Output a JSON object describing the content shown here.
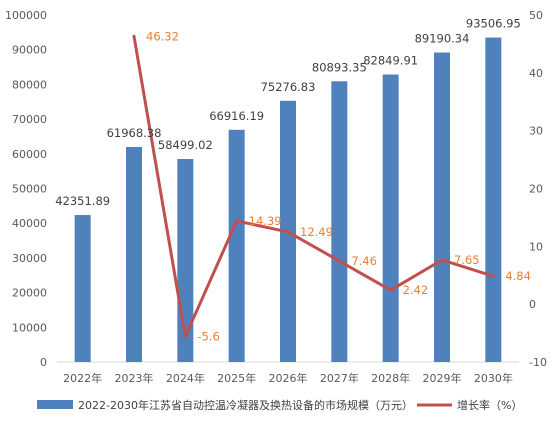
{
  "chart_data": {
    "type": "bar",
    "categories": [
      "2022年",
      "2023年",
      "2024年",
      "2025年",
      "2026年",
      "2027年",
      "2028年",
      "2029年",
      "2030年"
    ],
    "series": [
      {
        "name": "2022-2030年江苏省自动控温冷凝器及换热设备的市场规模（万元）",
        "type": "bar",
        "axis": "left",
        "values": [
          42351.89,
          61968.38,
          58499.02,
          66916.19,
          75276.83,
          80893.35,
          82849.91,
          89190.34,
          93506.95
        ],
        "labels": [
          "42351.89",
          "61968.38",
          "58499.02",
          "66916.19",
          "75276.83",
          "80893.35",
          "82849.91",
          "89190.34",
          "93506.95"
        ],
        "color": "#4F81BD"
      },
      {
        "name": "增长率（%）",
        "type": "line",
        "axis": "right",
        "values": [
          null,
          46.32,
          -5.6,
          14.39,
          12.49,
          7.46,
          2.42,
          7.65,
          4.84
        ],
        "labels": [
          "",
          "46.32",
          "-5.6",
          "14.39",
          "12.49",
          "7.46",
          "2.42",
          "7.65",
          "4.84"
        ],
        "color": "#C0504D",
        "label_color": "#ED7D31"
      }
    ],
    "y_left": {
      "lim": [
        0,
        100000
      ],
      "ticks": [
        "0",
        "10000",
        "20000",
        "30000",
        "40000",
        "50000",
        "60000",
        "70000",
        "80000",
        "90000",
        "100000"
      ]
    },
    "y_right": {
      "lim": [
        -10,
        50
      ],
      "ticks": [
        "-10",
        "0",
        "10",
        "20",
        "30",
        "40",
        "50"
      ]
    },
    "grid": false,
    "legend": "bottom"
  }
}
